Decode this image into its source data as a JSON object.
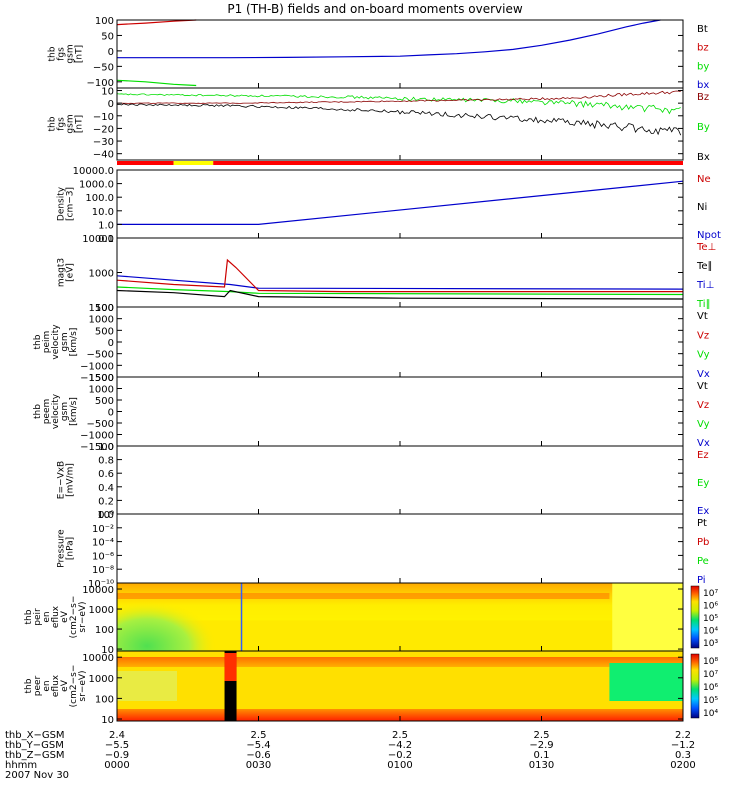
{
  "title": "P1 (TH-B) fields and on-board moments overview",
  "colors": {
    "black": "#000000",
    "red": "#cc0000",
    "green": "#00dd00",
    "blue": "#0000cc",
    "darkred": "#8b0000"
  },
  "chart_data": [
    {
      "type": "line",
      "id": "fgs_gse",
      "ylabel": [
        "thb",
        "fgs",
        "gsm",
        "[nT]"
      ],
      "ylim": [
        -120,
        100
      ],
      "yticks": [
        {
          "v": 100,
          "t": "100"
        },
        {
          "v": 50,
          "t": "50"
        },
        {
          "v": 0,
          "t": "0"
        },
        {
          "v": -50,
          "t": "−50"
        },
        {
          "v": -100,
          "t": "−100"
        }
      ],
      "legend": [
        {
          "label": "Bt",
          "color": "#000000"
        },
        {
          "label": "bz",
          "color": "#cc0000"
        },
        {
          "label": "by",
          "color": "#00dd00"
        },
        {
          "label": "bx",
          "color": "#0000cc"
        }
      ],
      "series": [
        {
          "name": "bz",
          "color": "#cc0000",
          "x": [
            0,
            0.05,
            0.1,
            0.14
          ],
          "y": [
            85,
            90,
            96,
            100
          ]
        },
        {
          "name": "by",
          "color": "#00dd00",
          "x": [
            0,
            0.05,
            0.1,
            0.14
          ],
          "y": [
            -95,
            -100,
            -108,
            -112
          ]
        },
        {
          "name": "bx",
          "color": "#0000cc",
          "x": [
            0,
            0.1,
            0.2,
            0.3,
            0.4,
            0.5,
            0.55,
            0.6,
            0.65,
            0.7,
            0.75,
            0.8,
            0.85,
            0.9,
            0.93,
            0.96
          ],
          "y": [
            -22,
            -22,
            -22,
            -21,
            -19,
            -17,
            -13,
            -9,
            -3,
            5,
            18,
            35,
            55,
            78,
            90,
            100
          ]
        }
      ]
    },
    {
      "type": "line",
      "id": "fgs_gsm",
      "ylabel": [
        "thb",
        "fgs",
        "gsm",
        "[nT]"
      ],
      "ylim": [
        -45,
        12
      ],
      "yticks": [
        {
          "v": 10,
          "t": "10"
        },
        {
          "v": 0,
          "t": "0"
        },
        {
          "v": -10,
          "t": "−10"
        },
        {
          "v": -20,
          "t": "−20"
        },
        {
          "v": -30,
          "t": "−30"
        },
        {
          "v": -40,
          "t": "−40"
        }
      ],
      "legend": [
        {
          "label": "Bz",
          "color": "#8b0000"
        },
        {
          "label": "By",
          "color": "#00dd00"
        },
        {
          "label": "Bx",
          "color": "#000000"
        }
      ],
      "series": [
        {
          "name": "By",
          "color": "#00dd00",
          "noise": 1.5,
          "x": [
            0,
            0.2,
            0.4,
            0.55,
            0.7,
            0.8,
            0.9,
            1
          ],
          "y": [
            7,
            6,
            5,
            3,
            2,
            0,
            -3,
            -6
          ]
        },
        {
          "name": "Bz",
          "color": "#8b0000",
          "noise": 0.6,
          "x": [
            0,
            0.2,
            0.4,
            0.55,
            0.7,
            0.8,
            0.9,
            1
          ],
          "y": [
            0,
            0,
            1,
            2,
            3,
            4,
            7,
            9
          ]
        },
        {
          "name": "Bx",
          "color": "#000000",
          "noise": 1.8,
          "x": [
            0,
            0.2,
            0.4,
            0.55,
            0.7,
            0.8,
            0.9,
            1
          ],
          "y": [
            -1,
            -2,
            -5,
            -8,
            -12,
            -15,
            -19,
            -24
          ]
        }
      ],
      "status_bar": [
        {
          "from": 0,
          "to": 0.1,
          "color": "#ff0000"
        },
        {
          "from": 0.1,
          "to": 0.17,
          "color": "#ffff00"
        },
        {
          "from": 0.17,
          "to": 1,
          "color": "#ff0000"
        }
      ]
    },
    {
      "type": "line",
      "id": "density",
      "ylabel": [
        "Density",
        "[cm−3]"
      ],
      "ylog": true,
      "ylim": [
        0.1,
        10000
      ],
      "yticks": [
        {
          "v": 10000,
          "t": "10000.0"
        },
        {
          "v": 1000,
          "t": "1000.0"
        },
        {
          "v": 100,
          "t": "100.0"
        },
        {
          "v": 10,
          "t": "10.0"
        },
        {
          "v": 1,
          "t": "1.0"
        },
        {
          "v": 0.1,
          "t": "0.1"
        }
      ],
      "legend": [
        {
          "label": "Ne",
          "color": "#cc0000"
        },
        {
          "label": "Ni",
          "color": "#000000"
        },
        {
          "label": "Npot",
          "color": "#0000cc"
        }
      ],
      "series": [
        {
          "name": "Npot",
          "color": "#0000cc",
          "x": [
            0,
            0.25,
            1
          ],
          "y": [
            1,
            1,
            1500
          ]
        }
      ]
    },
    {
      "type": "line",
      "id": "temp",
      "ylabel": [
        "magt3",
        "[eV]"
      ],
      "ylog": true,
      "ylim": [
        100,
        10000
      ],
      "yticks": [
        {
          "v": 10000,
          "t": "10000"
        },
        {
          "v": 1000,
          "t": "1000"
        },
        {
          "v": 100,
          "t": "100"
        }
      ],
      "legend": [
        {
          "label": "Te⊥",
          "color": "#cc0000"
        },
        {
          "label": "Te∥",
          "color": "#000000"
        },
        {
          "label": "Ti⊥",
          "color": "#0000cc"
        },
        {
          "label": "Ti∥",
          "color": "#00dd00"
        }
      ],
      "series": [
        {
          "name": "Ti⊥",
          "color": "#0000cc",
          "x": [
            0,
            0.1,
            0.2,
            0.25,
            1
          ],
          "y": [
            800,
            600,
            450,
            350,
            330
          ]
        },
        {
          "name": "Te⊥",
          "color": "#cc0000",
          "x": [
            0,
            0.1,
            0.19,
            0.195,
            0.21,
            0.25,
            0.4,
            1
          ],
          "y": [
            600,
            450,
            380,
            2300,
            1400,
            300,
            280,
            280
          ]
        },
        {
          "name": "Ti∥",
          "color": "#00dd00",
          "x": [
            0,
            0.1,
            0.2,
            0.25,
            1
          ],
          "y": [
            380,
            320,
            280,
            250,
            230
          ]
        },
        {
          "name": "Te∥",
          "color": "#000000",
          "x": [
            0,
            0.1,
            0.19,
            0.2,
            0.25,
            0.5,
            1
          ],
          "y": [
            300,
            260,
            200,
            300,
            200,
            180,
            170
          ]
        }
      ]
    },
    {
      "type": "line",
      "id": "peim",
      "ylabel": [
        "thb",
        "peim",
        "velocity",
        "gsm",
        "[km/s]"
      ],
      "ylim": [
        -1500,
        1500
      ],
      "yticks": [
        {
          "v": 1500,
          "t": "1500"
        },
        {
          "v": 1000,
          "t": "1000"
        },
        {
          "v": 500,
          "t": "500"
        },
        {
          "v": 0,
          "t": "0"
        },
        {
          "v": -500,
          "t": "−500"
        },
        {
          "v": -1000,
          "t": "−1000"
        },
        {
          "v": -1500,
          "t": "−1500"
        }
      ],
      "legend": [
        {
          "label": "Vt",
          "color": "#000000"
        },
        {
          "label": "Vz",
          "color": "#cc0000"
        },
        {
          "label": "Vy",
          "color": "#00dd00"
        },
        {
          "label": "Vx",
          "color": "#0000cc"
        }
      ],
      "series": []
    },
    {
      "type": "line",
      "id": "peem",
      "ylabel": [
        "thb",
        "peem",
        "velocity",
        "gsm",
        "[km/s]"
      ],
      "ylim": [
        -1500,
        1500
      ],
      "yticks": [
        {
          "v": 1500,
          "t": "1500"
        },
        {
          "v": 1000,
          "t": "1000"
        },
        {
          "v": 500,
          "t": "500"
        },
        {
          "v": 0,
          "t": "0"
        },
        {
          "v": -500,
          "t": "−500"
        },
        {
          "v": -1000,
          "t": "−1000"
        },
        {
          "v": -1500,
          "t": "−1500"
        }
      ],
      "legend": [
        {
          "label": "Vt",
          "color": "#000000"
        },
        {
          "label": "Vz",
          "color": "#cc0000"
        },
        {
          "label": "Vy",
          "color": "#00dd00"
        },
        {
          "label": "Vx",
          "color": "#0000cc"
        }
      ],
      "series": []
    },
    {
      "type": "line",
      "id": "efield",
      "ylabel": [
        "E=−VxB",
        "[mV/m]"
      ],
      "ylim": [
        0,
        1
      ],
      "yticks": [
        {
          "v": 1,
          "t": "1.0"
        },
        {
          "v": 0.8,
          "t": "0.8"
        },
        {
          "v": 0.6,
          "t": "0.6"
        },
        {
          "v": 0.4,
          "t": "0.4"
        },
        {
          "v": 0.2,
          "t": "0.2"
        },
        {
          "v": 0,
          "t": "0.0"
        }
      ],
      "legend": [
        {
          "label": "Ez",
          "color": "#cc0000"
        },
        {
          "label": "Ey",
          "color": "#00dd00"
        },
        {
          "label": "Ex",
          "color": "#0000cc"
        }
      ],
      "series": []
    },
    {
      "type": "line",
      "id": "pressure",
      "ylabel": [
        "Pressure",
        "[nPa]"
      ],
      "ylog": true,
      "ylim": [
        1e-10,
        1
      ],
      "yticks": [
        {
          "v": 1,
          "t": "10⁰"
        },
        {
          "v": 0.01,
          "t": "10⁻²"
        },
        {
          "v": 0.0001,
          "t": "10⁻⁴"
        },
        {
          "v": 1e-06,
          "t": "10⁻⁶"
        },
        {
          "v": 1e-08,
          "t": "10⁻⁸"
        },
        {
          "v": 1e-10,
          "t": "10⁻¹⁰"
        }
      ],
      "legend": [
        {
          "label": "Pt",
          "color": "#000000"
        },
        {
          "label": "Pb",
          "color": "#cc0000"
        },
        {
          "label": "Pe",
          "color": "#00dd00"
        },
        {
          "label": "Pi",
          "color": "#0000cc"
        }
      ],
      "series": []
    },
    {
      "type": "heatmap",
      "id": "peir",
      "ylabel": [
        "thb",
        "peir",
        "en",
        "eflux",
        "eV",
        "(cm2−s−",
        "sr−eV)"
      ],
      "ylog": true,
      "ylim": [
        8,
        20000
      ],
      "yticks": [
        {
          "v": 10000,
          "t": "10000"
        },
        {
          "v": 1000,
          "t": "1000"
        },
        {
          "v": 100,
          "t": "100"
        },
        {
          "v": 10,
          "t": "10"
        }
      ],
      "colorbar": {
        "ticks": [
          "10⁷",
          "10⁶",
          "10⁵",
          "10⁴",
          "10³"
        ]
      }
    },
    {
      "type": "heatmap",
      "id": "peer",
      "ylabel": [
        "thb",
        "peer",
        "en",
        "eflux",
        "eV",
        "(cm2−s−",
        "sr−eV)"
      ],
      "ylog": true,
      "ylim": [
        8,
        20000
      ],
      "yticks": [
        {
          "v": 10000,
          "t": "10000"
        },
        {
          "v": 1000,
          "t": "1000"
        },
        {
          "v": 100,
          "t": "100"
        },
        {
          "v": 10,
          "t": "10"
        }
      ],
      "colorbar": {
        "ticks": [
          "10⁸",
          "10⁷",
          "10⁶",
          "10⁵",
          "10⁴"
        ]
      }
    }
  ],
  "xaxis": {
    "rows": [
      {
        "label": "thb_X−GSM",
        "values": [
          "2.4",
          "2.5",
          "2.5",
          "2.5",
          "2.2"
        ]
      },
      {
        "label": "thb_Y−GSM",
        "values": [
          "−5.5",
          "−5.4",
          "−4.2",
          "−2.9",
          "−1.2"
        ]
      },
      {
        "label": "thb_Z−GSM",
        "values": [
          "−0.9",
          "−0.6",
          "−0.2",
          "0.1",
          "0.3"
        ]
      },
      {
        "label": "hhmm",
        "values": [
          "0000",
          "0030",
          "0100",
          "0130",
          "0200"
        ]
      }
    ],
    "date": "2007 Nov 30"
  }
}
